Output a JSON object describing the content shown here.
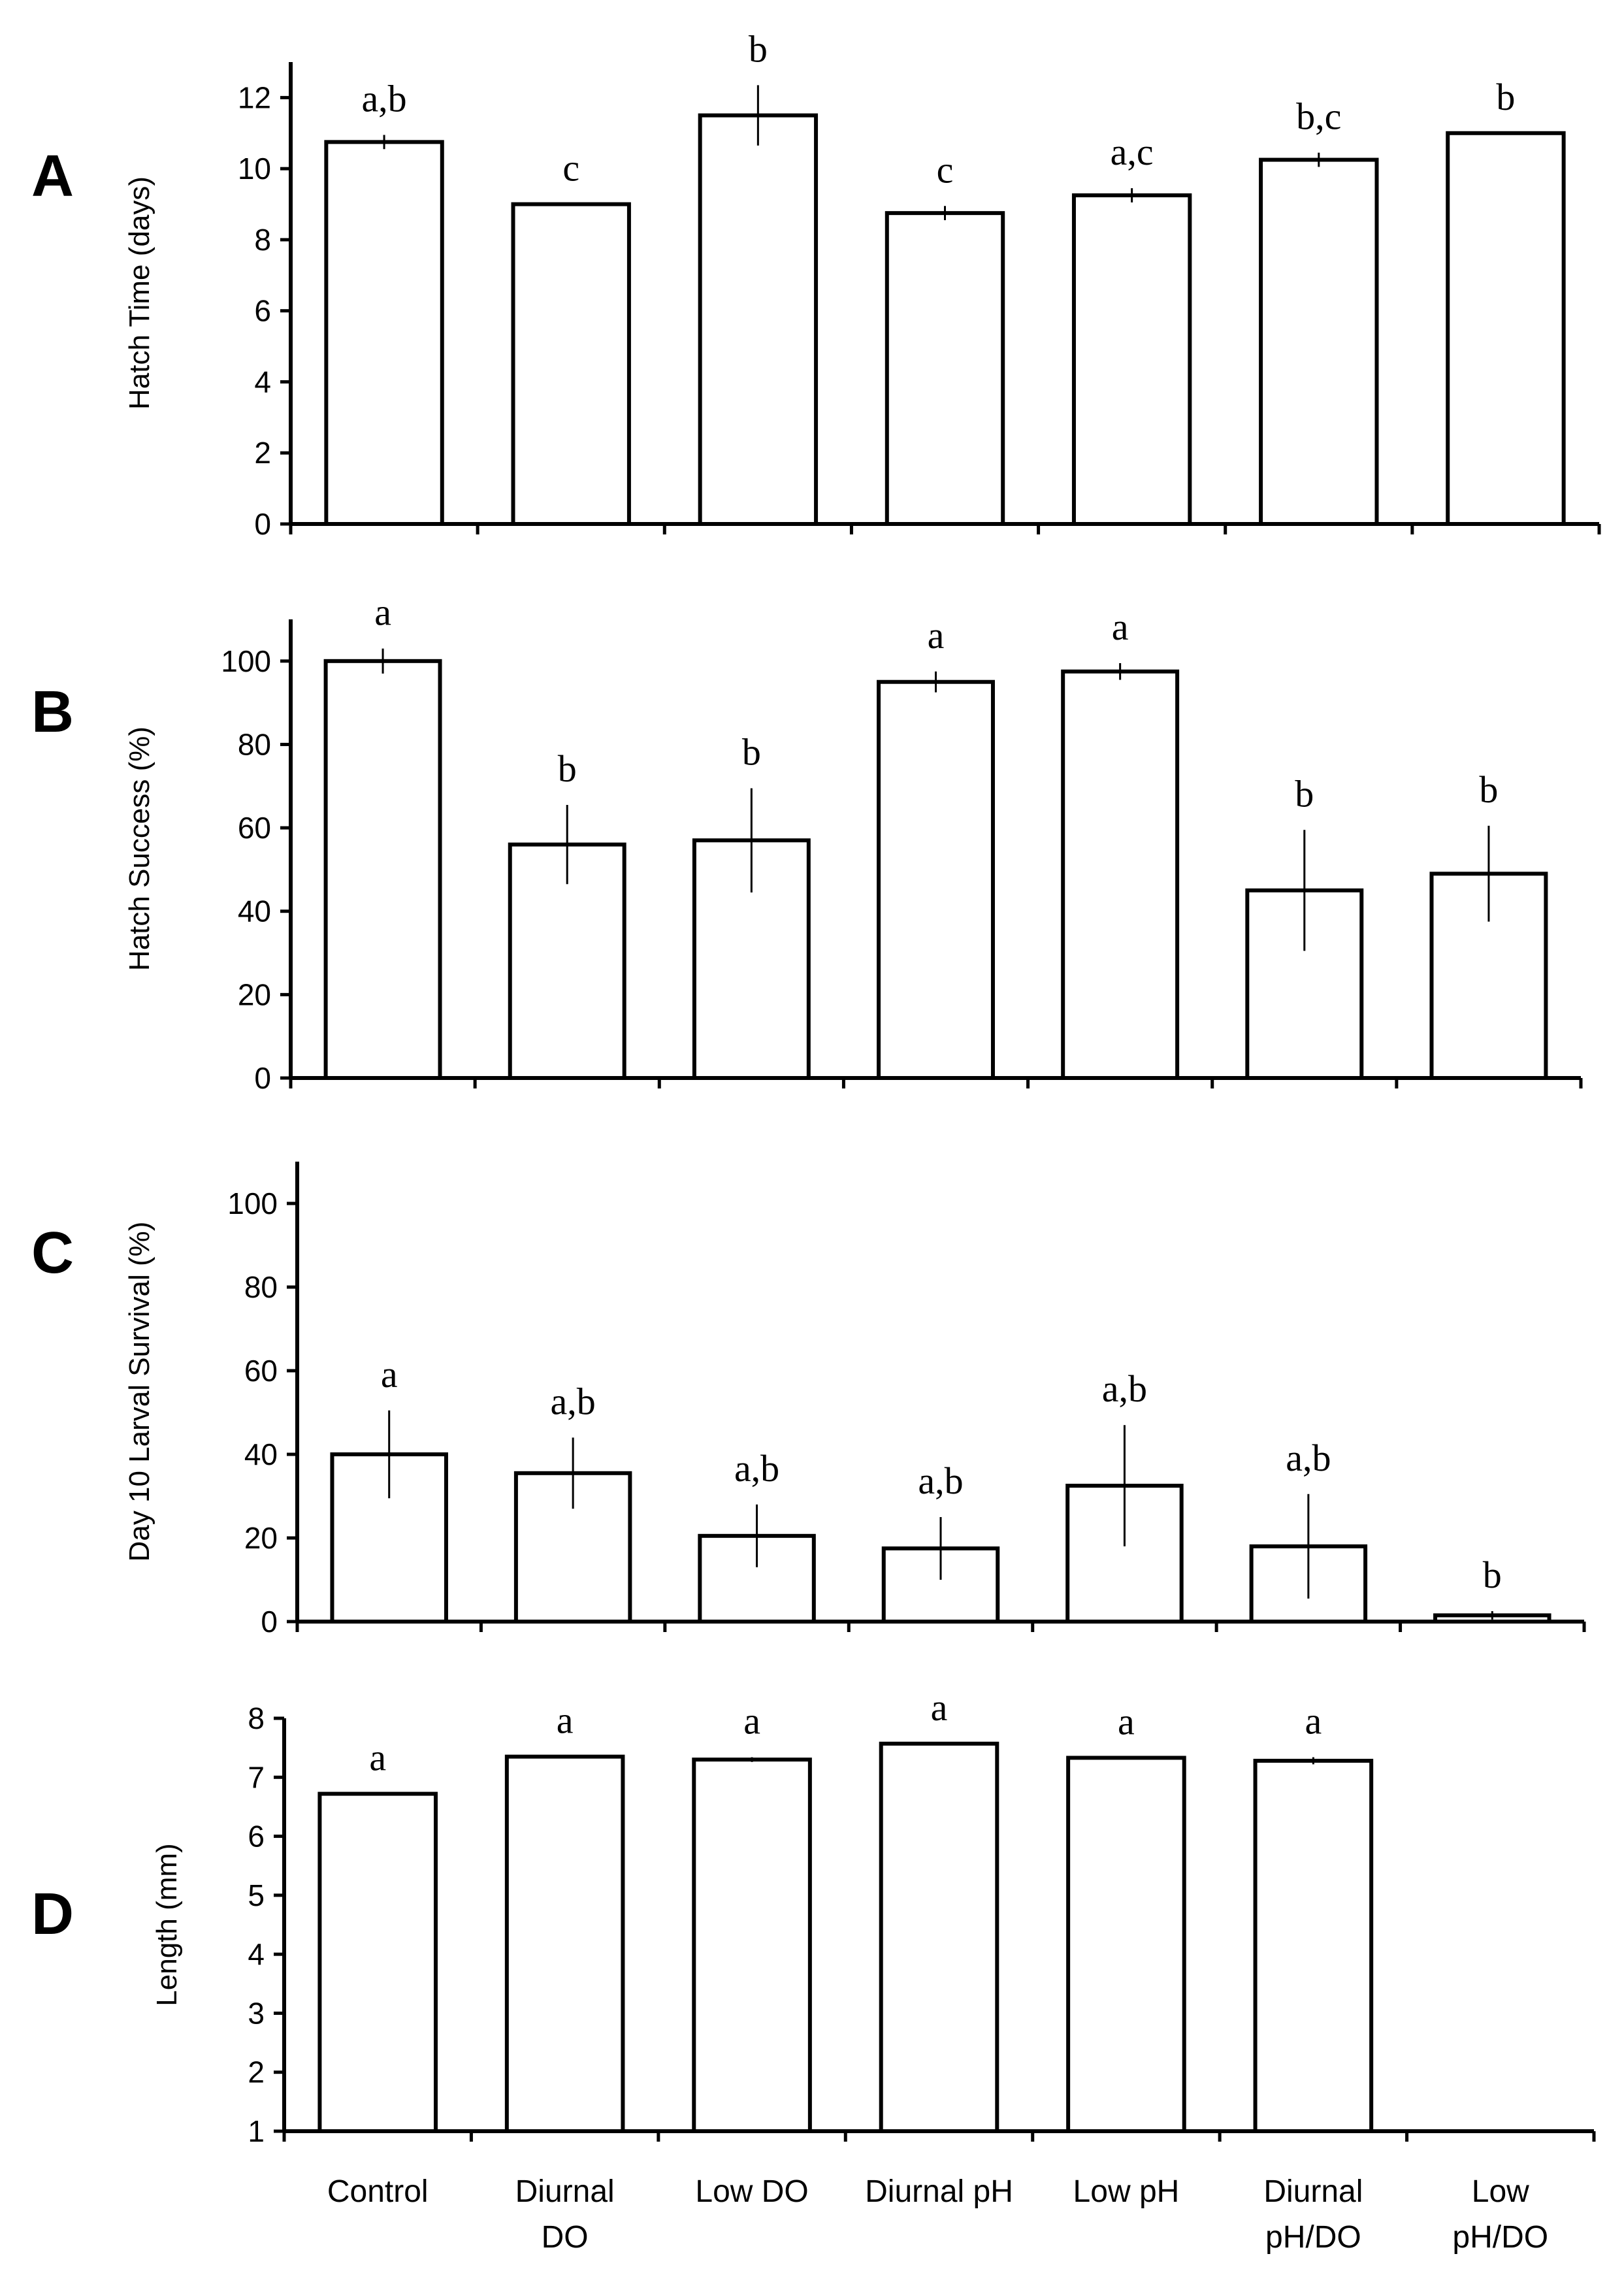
{
  "chart_data": [
    {
      "type": "bar",
      "panel_label": "A",
      "ylabel": "Hatch Time (days)",
      "ylim": [
        0,
        13
      ],
      "yticks": [
        0,
        2,
        4,
        6,
        8,
        10,
        12
      ],
      "categories": [
        "Control",
        "Diurnal DO",
        "Low DO",
        "Diurnal pH",
        "Low pH",
        "Diurnal pH/DO",
        "Low pH/DO"
      ],
      "values": [
        10.75,
        9.0,
        11.5,
        8.75,
        9.25,
        10.25,
        11.0
      ],
      "errors": [
        0.2,
        0.0,
        0.85,
        0.2,
        0.2,
        0.2,
        0.0
      ],
      "letters": [
        "a,b",
        "c",
        "b",
        "c",
        "a,c",
        "b,c",
        "b"
      ]
    },
    {
      "type": "bar",
      "panel_label": "B",
      "ylabel": "Hatch Success (%)",
      "ylim": [
        0,
        110
      ],
      "yticks": [
        0,
        20,
        40,
        60,
        80,
        100
      ],
      "categories": [
        "Control",
        "Diurnal DO",
        "Low DO",
        "Diurnal pH",
        "Low pH",
        "Diurnal pH/DO",
        "Low pH/DO"
      ],
      "values": [
        100,
        56,
        57,
        95,
        97.5,
        45,
        49
      ],
      "errors": [
        3,
        9.5,
        12.5,
        2.5,
        2,
        14.5,
        11.5
      ],
      "letters": [
        "a",
        "b",
        "b",
        "a",
        "a",
        "b",
        "b"
      ]
    },
    {
      "type": "bar",
      "panel_label": "C",
      "ylabel": "Day 10 Larval Survival (%)",
      "ylim": [
        0,
        110
      ],
      "yticks": [
        0,
        20,
        40,
        60,
        80,
        100
      ],
      "categories": [
        "Control",
        "Diurnal DO",
        "Low DO",
        "Diurnal pH",
        "Low pH",
        "Diurnal pH/DO",
        "Low pH/DO"
      ],
      "values": [
        40,
        35.5,
        20.5,
        17.5,
        32.5,
        18,
        1.5
      ],
      "errors": [
        10.5,
        8.5,
        7.5,
        7.5,
        14.5,
        12.5,
        1
      ],
      "letters": [
        "a",
        "a,b",
        "a,b",
        "a,b",
        "a,b",
        "a,b",
        "b"
      ]
    },
    {
      "type": "bar",
      "panel_label": "D",
      "ylabel": "Length (mm)",
      "ylim": [
        1,
        8
      ],
      "yticks": [
        1,
        2,
        3,
        4,
        5,
        6,
        7,
        8
      ],
      "categories": [
        "Control",
        "Diurnal DO",
        "Low DO",
        "Diurnal pH",
        "Low pH",
        "Diurnal pH/DO",
        "Low pH/DO"
      ],
      "values": [
        6.72,
        7.35,
        7.3,
        7.57,
        7.33,
        7.28,
        null
      ],
      "errors": [
        0,
        0,
        0.04,
        0,
        0,
        0.06,
        0
      ],
      "letters": [
        "a",
        "a",
        "a",
        "a",
        "a",
        "a",
        ""
      ]
    }
  ],
  "x_category_labels": [
    [
      "Control"
    ],
    [
      "Diurnal",
      "DO"
    ],
    [
      "Low DO"
    ],
    [
      "Diurnal pH"
    ],
    [
      "Low pH"
    ],
    [
      "Diurnal",
      "pH/DO"
    ],
    [
      "Low",
      "pH/DO"
    ]
  ]
}
